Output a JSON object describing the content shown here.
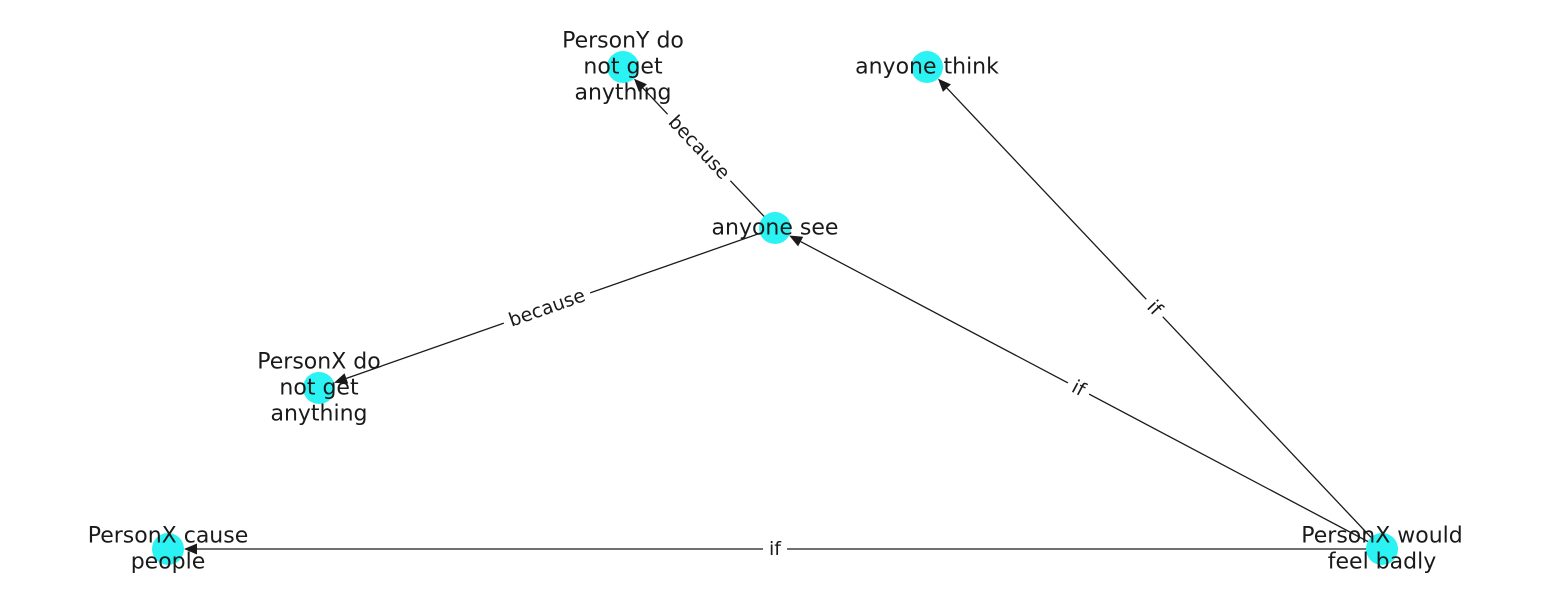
{
  "graph": {
    "node_color": "#2cf3f3",
    "edge_color": "#1a1a1a",
    "nodes": [
      {
        "id": "personx_would_feel_badly",
        "lines": [
          "PersonX would",
          "feel badly"
        ]
      },
      {
        "id": "anyone_see",
        "lines": [
          "anyone see"
        ]
      },
      {
        "id": "anyone_think",
        "lines": [
          "anyone think"
        ]
      },
      {
        "id": "persony_do_not_get_anything",
        "lines": [
          "PersonY do",
          "not get",
          "anything"
        ]
      },
      {
        "id": "personx_do_not_get_anything",
        "lines": [
          "PersonX do",
          "not get",
          "anything"
        ]
      },
      {
        "id": "personx_cause_people",
        "lines": [
          "PersonX cause",
          "people"
        ]
      }
    ],
    "edges": [
      {
        "source": "personx_would_feel_badly",
        "target": "anyone_think",
        "label": "if"
      },
      {
        "source": "personx_would_feel_badly",
        "target": "anyone_see",
        "label": "if"
      },
      {
        "source": "personx_would_feel_badly",
        "target": "personx_cause_people",
        "label": "if"
      },
      {
        "source": "anyone_see",
        "target": "persony_do_not_get_anything",
        "label": "because"
      },
      {
        "source": "anyone_see",
        "target": "personx_do_not_get_anything",
        "label": "because"
      }
    ]
  }
}
